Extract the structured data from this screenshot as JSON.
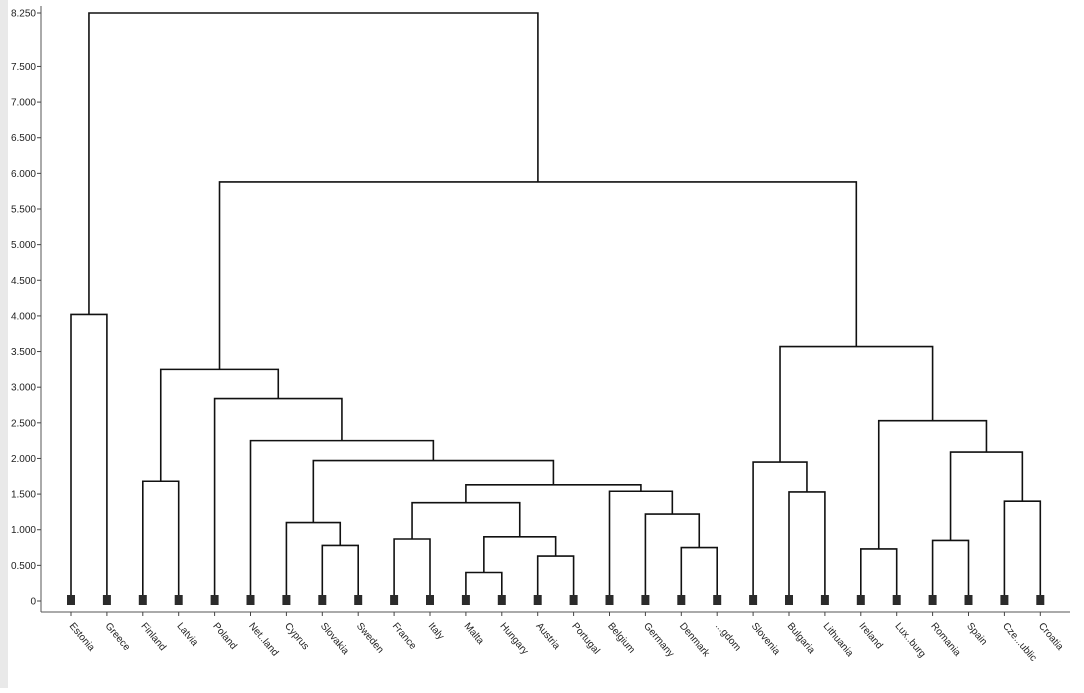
{
  "chart_data": {
    "type": "dendrogram",
    "title": "",
    "xlabel": "",
    "ylabel": "",
    "ylim": [
      0,
      8.25
    ],
    "y_ticks": [
      {
        "value": 0,
        "label": "0"
      },
      {
        "value": 0.5,
        "label": "0.500"
      },
      {
        "value": 1.0,
        "label": "1.000"
      },
      {
        "value": 1.5,
        "label": "1.500"
      },
      {
        "value": 2.0,
        "label": "2.000"
      },
      {
        "value": 2.5,
        "label": "2.500"
      },
      {
        "value": 3.0,
        "label": "3.000"
      },
      {
        "value": 3.5,
        "label": "3.500"
      },
      {
        "value": 4.0,
        "label": "4.000"
      },
      {
        "value": 4.5,
        "label": "4.500"
      },
      {
        "value": 5.0,
        "label": "5.000"
      },
      {
        "value": 5.5,
        "label": "5.500"
      },
      {
        "value": 6.0,
        "label": "6.000"
      },
      {
        "value": 6.5,
        "label": "6.500"
      },
      {
        "value": 7.0,
        "label": "7.000"
      },
      {
        "value": 7.5,
        "label": "7.500"
      },
      {
        "value": 8.25,
        "label": "8.250"
      }
    ],
    "leaves": [
      "Estonia",
      "Greece",
      "Finland",
      "Latvia",
      "Poland",
      "Net..land",
      "Cyprus",
      "Slovakia",
      "Sweden",
      "France",
      "Italy",
      "Malta",
      "Hungary",
      "Austria",
      "Portugal",
      "Belgium",
      "Germany",
      "Denmark",
      "...gdom",
      "Slovenia",
      "Bulgaria",
      "Lithuania",
      "Ireland",
      "Lux..burg",
      "Romania",
      "Spain",
      "Cze...ublic",
      "Croatia"
    ],
    "merges": [
      {
        "id": "m1",
        "left": 11,
        "right": 12,
        "height": 0.4
      },
      {
        "id": "m2",
        "left": 13,
        "right": 14,
        "height": 0.63
      },
      {
        "id": "m3",
        "left": 22,
        "right": 23,
        "height": 0.73
      },
      {
        "id": "m4",
        "left": 17,
        "right": 18,
        "height": 0.75
      },
      {
        "id": "m5",
        "left": 7,
        "right": 8,
        "height": 0.78
      },
      {
        "id": "m6",
        "left": 24,
        "right": 25,
        "height": 0.85
      },
      {
        "id": "m7",
        "left": 9,
        "right": 10,
        "height": 0.87
      },
      {
        "id": "m8",
        "left": "m1",
        "right": "m2",
        "height": 0.9
      },
      {
        "id": "m9",
        "left": 6,
        "right": "m5",
        "height": 1.1
      },
      {
        "id": "m10",
        "left": 16,
        "right": "m4",
        "height": 1.22
      },
      {
        "id": "m11",
        "left": "m7",
        "right": "m8",
        "height": 1.38
      },
      {
        "id": "m12",
        "left": 26,
        "right": 27,
        "height": 1.4
      },
      {
        "id": "m13",
        "left": 20,
        "right": 21,
        "height": 1.53
      },
      {
        "id": "m14",
        "left": 15,
        "right": "m10",
        "height": 1.54
      },
      {
        "id": "m15",
        "left": "m11",
        "right": "m14",
        "height": 1.63
      },
      {
        "id": "m16",
        "left": 2,
        "right": 3,
        "height": 1.68
      },
      {
        "id": "m17",
        "left": 19,
        "right": "m13",
        "height": 1.95
      },
      {
        "id": "m18",
        "left": "m9",
        "right": "m15",
        "height": 1.97
      },
      {
        "id": "m19",
        "left": "m6",
        "right": "m12",
        "height": 2.09
      },
      {
        "id": "m20",
        "left": 5,
        "right": "m18",
        "height": 2.25
      },
      {
        "id": "m21",
        "left": "m3",
        "right": "m19",
        "height": 2.53
      },
      {
        "id": "m22",
        "left": 4,
        "right": "m20",
        "height": 2.84
      },
      {
        "id": "m23",
        "left": "m16",
        "right": "m22",
        "height": 3.25
      },
      {
        "id": "m24",
        "left": "m17",
        "right": "m21",
        "height": 3.57
      },
      {
        "id": "m25",
        "left": 0,
        "right": 1,
        "height": 4.02
      },
      {
        "id": "m26",
        "left": "m23",
        "right": "m24",
        "height": 5.88
      },
      {
        "id": "m27",
        "left": "m25",
        "right": "m26",
        "height": 8.25
      }
    ]
  }
}
